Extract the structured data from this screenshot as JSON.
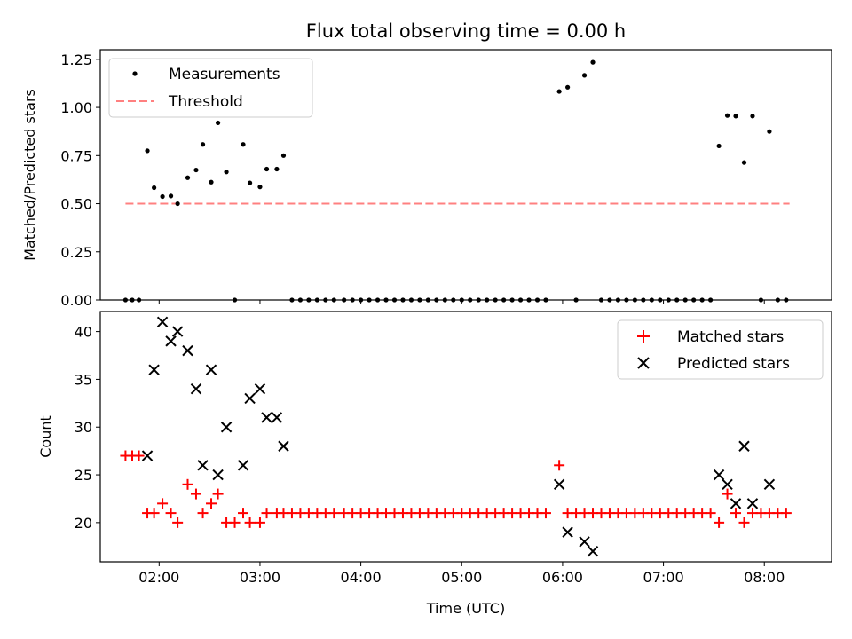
{
  "figure": {
    "title": "Flux total observing time = 0.00 h"
  },
  "chart_data": [
    {
      "type": "scatter",
      "ylabel": "Matched/Predicted stars",
      "xlabel": "",
      "xlim": [
        "01:25",
        "08:40"
      ],
      "ylim": [
        0,
        1.3
      ],
      "x_ticks": [
        "02:00",
        "03:00",
        "04:00",
        "05:00",
        "06:00",
        "07:00",
        "08:00"
      ],
      "y_ticks": [
        "0.00",
        "0.25",
        "0.50",
        "0.75",
        "1.00",
        "1.25"
      ],
      "legend_position": "upper-left",
      "threshold": {
        "name": "Threshold",
        "y": 0.5,
        "x_range": [
          "01:40",
          "08:15"
        ],
        "color": "#ff8080"
      },
      "series": [
        {
          "name": "Measurements",
          "color": "#000000",
          "points": [
            [
              "01:40",
              0.0
            ],
            [
              "01:44",
              0.0
            ],
            [
              "01:48",
              0.0
            ],
            [
              "01:53",
              0.775
            ],
            [
              "01:57",
              0.583
            ],
            [
              "02:02",
              0.537
            ],
            [
              "02:07",
              0.54
            ],
            [
              "02:11",
              0.5
            ],
            [
              "02:17",
              0.635
            ],
            [
              "02:22",
              0.675
            ],
            [
              "02:26",
              0.808
            ],
            [
              "02:31",
              0.612
            ],
            [
              "02:35",
              0.92
            ],
            [
              "02:40",
              0.665
            ],
            [
              "02:45",
              0.0
            ],
            [
              "02:50",
              0.808
            ],
            [
              "02:54",
              0.608
            ],
            [
              "03:00",
              0.587
            ],
            [
              "03:04",
              0.68
            ],
            [
              "03:10",
              0.68
            ],
            [
              "03:14",
              0.75
            ],
            [
              "03:19",
              0.0
            ],
            [
              "03:24",
              0.0
            ],
            [
              "03:29",
              0.0
            ],
            [
              "03:34",
              0.0
            ],
            [
              "03:39",
              0.0
            ],
            [
              "03:44",
              0.0
            ],
            [
              "03:50",
              0.0
            ],
            [
              "03:55",
              0.0
            ],
            [
              "04:00",
              0.0
            ],
            [
              "04:05",
              0.0
            ],
            [
              "04:10",
              0.0
            ],
            [
              "04:15",
              0.0
            ],
            [
              "04:20",
              0.0
            ],
            [
              "04:25",
              0.0
            ],
            [
              "04:30",
              0.0
            ],
            [
              "04:35",
              0.0
            ],
            [
              "04:40",
              0.0
            ],
            [
              "04:45",
              0.0
            ],
            [
              "04:50",
              0.0
            ],
            [
              "04:55",
              0.0
            ],
            [
              "05:00",
              0.0
            ],
            [
              "05:05",
              0.0
            ],
            [
              "05:10",
              0.0
            ],
            [
              "05:15",
              0.0
            ],
            [
              "05:20",
              0.0
            ],
            [
              "05:25",
              0.0
            ],
            [
              "05:30",
              0.0
            ],
            [
              "05:35",
              0.0
            ],
            [
              "05:40",
              0.0
            ],
            [
              "05:45",
              0.0
            ],
            [
              "05:50",
              0.0
            ],
            [
              "05:58",
              1.083
            ],
            [
              "06:03",
              1.105
            ],
            [
              "06:08",
              0.0
            ],
            [
              "06:13",
              1.167
            ],
            [
              "06:18",
              1.235
            ],
            [
              "06:23",
              0.0
            ],
            [
              "06:28",
              0.0
            ],
            [
              "06:33",
              0.0
            ],
            [
              "06:38",
              0.0
            ],
            [
              "06:43",
              0.0
            ],
            [
              "06:48",
              0.0
            ],
            [
              "06:53",
              0.0
            ],
            [
              "06:58",
              0.0
            ],
            [
              "07:03",
              0.0
            ],
            [
              "07:08",
              0.0
            ],
            [
              "07:13",
              0.0
            ],
            [
              "07:18",
              0.0
            ],
            [
              "07:23",
              0.0
            ],
            [
              "07:28",
              0.0
            ],
            [
              "07:33",
              0.8
            ],
            [
              "07:38",
              0.958
            ],
            [
              "07:43",
              0.955
            ],
            [
              "07:48",
              0.714
            ],
            [
              "07:53",
              0.955
            ],
            [
              "07:58",
              0.0
            ],
            [
              "08:03",
              0.875
            ],
            [
              "08:08",
              0.0
            ],
            [
              "08:13",
              0.0
            ]
          ]
        }
      ]
    },
    {
      "type": "scatter",
      "ylabel": "Count",
      "xlabel": "Time (UTC)",
      "xlim": [
        "01:25",
        "08:40"
      ],
      "ylim": [
        15.9,
        42.1
      ],
      "x_ticks": [
        "02:00",
        "03:00",
        "04:00",
        "05:00",
        "06:00",
        "07:00",
        "08:00"
      ],
      "y_ticks": [
        "20",
        "25",
        "30",
        "35",
        "40"
      ],
      "legend_position": "upper-right",
      "series": [
        {
          "name": "Matched stars",
          "marker": "plus",
          "color": "#ff0000",
          "points": [
            [
              "01:40",
              27
            ],
            [
              "01:44",
              27
            ],
            [
              "01:48",
              27
            ],
            [
              "01:53",
              21
            ],
            [
              "01:57",
              21
            ],
            [
              "02:02",
              22
            ],
            [
              "02:07",
              21
            ],
            [
              "02:11",
              20
            ],
            [
              "02:17",
              24
            ],
            [
              "02:22",
              23
            ],
            [
              "02:26",
              21
            ],
            [
              "02:31",
              22
            ],
            [
              "02:35",
              23
            ],
            [
              "02:40",
              20
            ],
            [
              "02:45",
              20
            ],
            [
              "02:50",
              21
            ],
            [
              "02:54",
              20
            ],
            [
              "03:00",
              20
            ],
            [
              "03:04",
              21
            ],
            [
              "03:10",
              21
            ],
            [
              "03:14",
              21
            ],
            [
              "03:19",
              21
            ],
            [
              "03:24",
              21
            ],
            [
              "03:29",
              21
            ],
            [
              "03:34",
              21
            ],
            [
              "03:39",
              21
            ],
            [
              "03:44",
              21
            ],
            [
              "03:50",
              21
            ],
            [
              "03:55",
              21
            ],
            [
              "04:00",
              21
            ],
            [
              "04:05",
              21
            ],
            [
              "04:10",
              21
            ],
            [
              "04:15",
              21
            ],
            [
              "04:20",
              21
            ],
            [
              "04:25",
              21
            ],
            [
              "04:30",
              21
            ],
            [
              "04:35",
              21
            ],
            [
              "04:40",
              21
            ],
            [
              "04:45",
              21
            ],
            [
              "04:50",
              21
            ],
            [
              "04:55",
              21
            ],
            [
              "05:00",
              21
            ],
            [
              "05:05",
              21
            ],
            [
              "05:10",
              21
            ],
            [
              "05:15",
              21
            ],
            [
              "05:20",
              21
            ],
            [
              "05:25",
              21
            ],
            [
              "05:30",
              21
            ],
            [
              "05:35",
              21
            ],
            [
              "05:40",
              21
            ],
            [
              "05:45",
              21
            ],
            [
              "05:50",
              21
            ],
            [
              "05:58",
              26
            ],
            [
              "06:03",
              21
            ],
            [
              "06:08",
              21
            ],
            [
              "06:13",
              21
            ],
            [
              "06:18",
              21
            ],
            [
              "06:23",
              21
            ],
            [
              "06:28",
              21
            ],
            [
              "06:33",
              21
            ],
            [
              "06:38",
              21
            ],
            [
              "06:43",
              21
            ],
            [
              "06:48",
              21
            ],
            [
              "06:53",
              21
            ],
            [
              "06:58",
              21
            ],
            [
              "07:03",
              21
            ],
            [
              "07:08",
              21
            ],
            [
              "07:13",
              21
            ],
            [
              "07:18",
              21
            ],
            [
              "07:23",
              21
            ],
            [
              "07:28",
              21
            ],
            [
              "07:33",
              20
            ],
            [
              "07:38",
              23
            ],
            [
              "07:43",
              21
            ],
            [
              "07:48",
              20
            ],
            [
              "07:53",
              21
            ],
            [
              "07:58",
              21
            ],
            [
              "08:03",
              21
            ],
            [
              "08:08",
              21
            ],
            [
              "08:13",
              21
            ]
          ]
        },
        {
          "name": "Predicted stars",
          "marker": "x",
          "color": "#000000",
          "points": [
            [
              "01:53",
              27
            ],
            [
              "01:57",
              36
            ],
            [
              "02:02",
              41
            ],
            [
              "02:07",
              39
            ],
            [
              "02:11",
              40
            ],
            [
              "02:17",
              38
            ],
            [
              "02:22",
              34
            ],
            [
              "02:26",
              26
            ],
            [
              "02:31",
              36
            ],
            [
              "02:35",
              25
            ],
            [
              "02:40",
              30
            ],
            [
              "02:50",
              26
            ],
            [
              "02:54",
              33
            ],
            [
              "03:00",
              34
            ],
            [
              "03:04",
              31
            ],
            [
              "03:10",
              31
            ],
            [
              "03:14",
              28
            ],
            [
              "05:58",
              24
            ],
            [
              "06:03",
              19
            ],
            [
              "06:13",
              18
            ],
            [
              "06:18",
              17
            ],
            [
              "07:33",
              25
            ],
            [
              "07:38",
              24
            ],
            [
              "07:43",
              22
            ],
            [
              "07:48",
              28
            ],
            [
              "07:53",
              22
            ],
            [
              "08:03",
              24
            ]
          ]
        }
      ]
    }
  ]
}
